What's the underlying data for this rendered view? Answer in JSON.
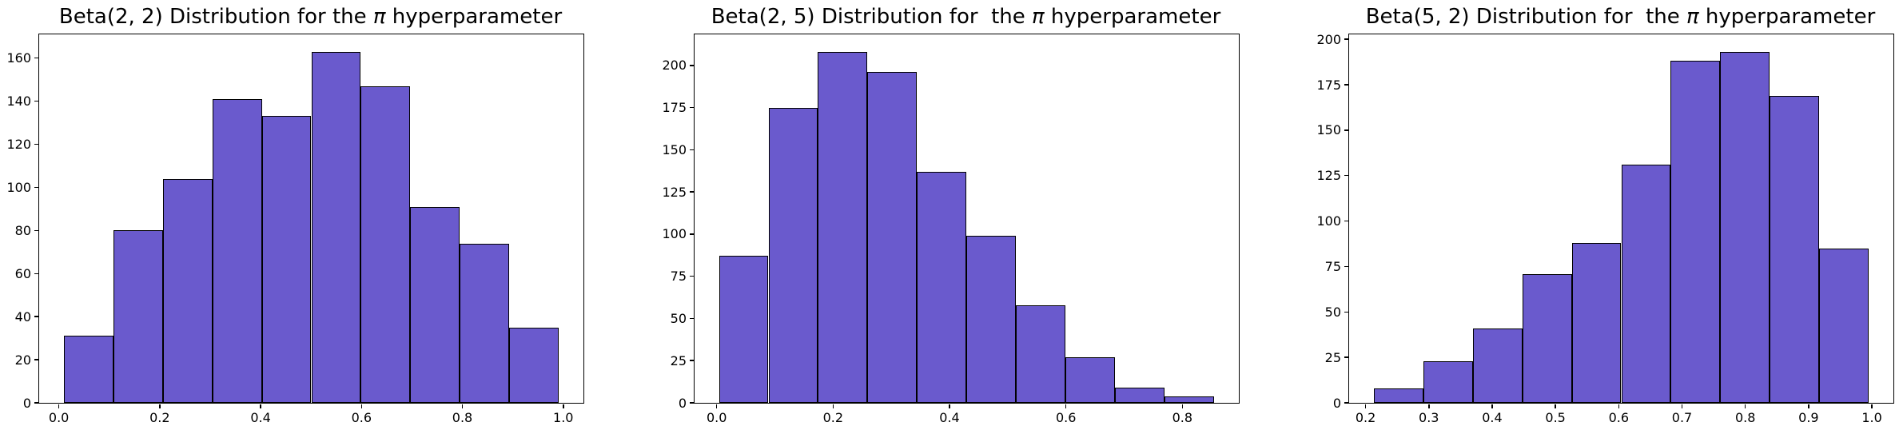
{
  "figure": {
    "background_color": "#ffffff",
    "bar_fill_color": "#6a5acd",
    "bar_edge_color": "#000000",
    "spine_color": "#000000",
    "text_color": "#000000"
  },
  "chart_data": [
    {
      "type": "histogram",
      "title": "Beta(2, 2) Distribution for the π hyperparameter",
      "title_pre": "Beta(2, 2) Distribution for the ",
      "title_pi": "π",
      "title_post": " hyperparameter",
      "xlabel": "",
      "ylabel": "",
      "grid": false,
      "legend_position": "none",
      "bin_start": 0.01,
      "bin_width": 0.0981,
      "values": [
        31,
        80,
        104,
        141,
        133,
        163,
        147,
        91,
        74,
        35
      ],
      "xlim": [
        -0.039,
        1.04
      ],
      "ylim": [
        0,
        171
      ],
      "xticks": [
        0.0,
        0.2,
        0.4,
        0.6,
        0.8,
        1.0
      ],
      "xtick_labels": [
        "0.0",
        "0.2",
        "0.4",
        "0.6",
        "0.8",
        "1.0"
      ],
      "yticks": [
        0,
        20,
        40,
        60,
        80,
        100,
        120,
        140,
        160
      ],
      "ytick_labels": [
        "0",
        "20",
        "40",
        "60",
        "80",
        "100",
        "120",
        "140",
        "160"
      ]
    },
    {
      "type": "histogram",
      "title": "Beta(2, 5) Distribution for  the π hyperparameter",
      "title_pre": "Beta(2, 5) Distribution for  the ",
      "title_pi": "π",
      "title_post": " hyperparameter",
      "xlabel": "",
      "ylabel": "",
      "grid": false,
      "legend_position": "none",
      "bin_start": 0.004,
      "bin_width": 0.085,
      "values": [
        87,
        175,
        208,
        196,
        137,
        99,
        58,
        27,
        9,
        4
      ],
      "xlim": [
        -0.038,
        0.897
      ],
      "ylim": [
        0,
        218.4
      ],
      "xticks": [
        0.0,
        0.2,
        0.4,
        0.6,
        0.8
      ],
      "xtick_labels": [
        "0.0",
        "0.2",
        "0.4",
        "0.6",
        "0.8"
      ],
      "yticks": [
        0,
        25,
        50,
        75,
        100,
        125,
        150,
        175,
        200
      ],
      "ytick_labels": [
        "0",
        "25",
        "50",
        "75",
        "100",
        "125",
        "150",
        "175",
        "200"
      ]
    },
    {
      "type": "histogram",
      "title": "Beta(5, 2) Distribution for  the π hyperparameter",
      "title_pre": "Beta(5, 2) Distribution for  the ",
      "title_pi": "π",
      "title_post": " hyperparameter",
      "xlabel": "",
      "ylabel": "",
      "grid": false,
      "legend_position": "none",
      "bin_start": 0.213,
      "bin_width": 0.0782,
      "values": [
        8,
        23,
        41,
        71,
        88,
        131,
        188,
        193,
        169,
        85
      ],
      "xlim": [
        0.174,
        1.034
      ],
      "ylim": [
        0,
        202.7
      ],
      "xticks": [
        0.2,
        0.3,
        0.4,
        0.5,
        0.6,
        0.7,
        0.8,
        0.9,
        1.0
      ],
      "xtick_labels": [
        "0.2",
        "0.3",
        "0.4",
        "0.5",
        "0.6",
        "0.7",
        "0.8",
        "0.9",
        "1.0"
      ],
      "yticks": [
        0,
        25,
        50,
        75,
        100,
        125,
        150,
        175,
        200
      ],
      "ytick_labels": [
        "0",
        "25",
        "50",
        "75",
        "100",
        "125",
        "150",
        "175",
        "200"
      ]
    }
  ]
}
